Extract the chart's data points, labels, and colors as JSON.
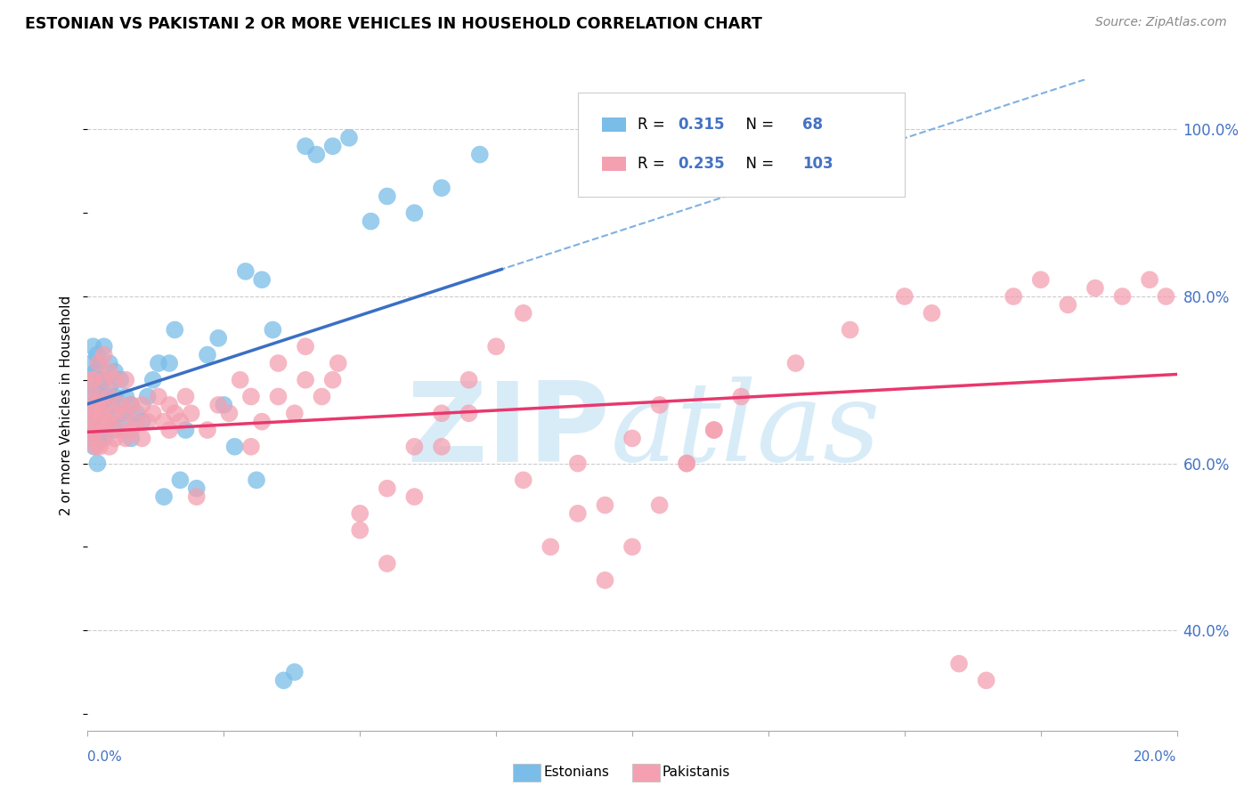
{
  "title": "ESTONIAN VS PAKISTANI 2 OR MORE VEHICLES IN HOUSEHOLD CORRELATION CHART",
  "source": "Source: ZipAtlas.com",
  "ylabel": "2 or more Vehicles in Household",
  "ytick_labels": [
    "100.0%",
    "80.0%",
    "60.0%",
    "40.0%"
  ],
  "ytick_positions": [
    1.0,
    0.8,
    0.6,
    0.4
  ],
  "xmin": 0.0,
  "xmax": 0.2,
  "ymin": 0.28,
  "ymax": 1.06,
  "r_estonian": 0.315,
  "n_estonian": 68,
  "r_pakistani": 0.235,
  "n_pakistani": 103,
  "color_estonian": "#7abde8",
  "color_pakistani": "#f4a0b0",
  "color_regression_estonian": "#3a6fc4",
  "color_regression_pakistani": "#e8386d",
  "color_dashed": "#80b0e0",
  "watermark_zip": "ZIP",
  "watermark_atlas": "atlas",
  "watermark_color": "#d8ecf8",
  "legend_label_estonian": "Estonians",
  "legend_label_pakistani": "Pakistanis",
  "estonian_x": [
    0.0005,
    0.0006,
    0.0007,
    0.0008,
    0.0009,
    0.001,
    0.001,
    0.0012,
    0.0013,
    0.0014,
    0.0015,
    0.0016,
    0.0017,
    0.0018,
    0.002,
    0.002,
    0.002,
    0.0022,
    0.0025,
    0.0025,
    0.003,
    0.003,
    0.003,
    0.003,
    0.0035,
    0.004,
    0.004,
    0.004,
    0.0045,
    0.005,
    0.005,
    0.005,
    0.006,
    0.006,
    0.007,
    0.007,
    0.008,
    0.008,
    0.009,
    0.01,
    0.011,
    0.012,
    0.013,
    0.014,
    0.015,
    0.016,
    0.017,
    0.018,
    0.02,
    0.022,
    0.024,
    0.025,
    0.027,
    0.029,
    0.031,
    0.032,
    0.034,
    0.036,
    0.038,
    0.04,
    0.042,
    0.045,
    0.048,
    0.052,
    0.055,
    0.06,
    0.065,
    0.072
  ],
  "estonian_y": [
    0.68,
    0.72,
    0.65,
    0.7,
    0.63,
    0.67,
    0.74,
    0.62,
    0.69,
    0.66,
    0.71,
    0.64,
    0.73,
    0.6,
    0.68,
    0.65,
    0.72,
    0.63,
    0.7,
    0.67,
    0.66,
    0.7,
    0.74,
    0.63,
    0.68,
    0.65,
    0.69,
    0.72,
    0.67,
    0.64,
    0.68,
    0.71,
    0.66,
    0.7,
    0.65,
    0.68,
    0.63,
    0.67,
    0.66,
    0.65,
    0.68,
    0.7,
    0.72,
    0.56,
    0.72,
    0.76,
    0.58,
    0.64,
    0.57,
    0.73,
    0.75,
    0.67,
    0.62,
    0.83,
    0.58,
    0.82,
    0.76,
    0.34,
    0.35,
    0.98,
    0.97,
    0.98,
    0.99,
    0.89,
    0.92,
    0.9,
    0.93,
    0.97
  ],
  "pakistani_x": [
    0.0005,
    0.0006,
    0.0007,
    0.0008,
    0.001,
    0.001,
    0.001,
    0.0012,
    0.0015,
    0.0018,
    0.002,
    0.002,
    0.002,
    0.0022,
    0.0025,
    0.003,
    0.003,
    0.003,
    0.003,
    0.0035,
    0.004,
    0.004,
    0.004,
    0.004,
    0.005,
    0.005,
    0.005,
    0.006,
    0.006,
    0.007,
    0.007,
    0.007,
    0.008,
    0.008,
    0.009,
    0.01,
    0.01,
    0.011,
    0.012,
    0.013,
    0.014,
    0.015,
    0.015,
    0.016,
    0.017,
    0.018,
    0.019,
    0.02,
    0.022,
    0.024,
    0.026,
    0.028,
    0.03,
    0.032,
    0.035,
    0.038,
    0.04,
    0.043,
    0.046,
    0.05,
    0.055,
    0.06,
    0.065,
    0.07,
    0.08,
    0.09,
    0.095,
    0.1,
    0.105,
    0.11,
    0.115,
    0.12,
    0.13,
    0.14,
    0.15,
    0.155,
    0.16,
    0.165,
    0.17,
    0.175,
    0.18,
    0.185,
    0.19,
    0.195,
    0.198,
    0.03,
    0.035,
    0.04,
    0.045,
    0.05,
    0.055,
    0.06,
    0.065,
    0.07,
    0.075,
    0.08,
    0.085,
    0.09,
    0.095,
    0.1,
    0.105,
    0.11,
    0.115
  ],
  "pakistani_y": [
    0.64,
    0.68,
    0.66,
    0.7,
    0.63,
    0.66,
    0.7,
    0.64,
    0.62,
    0.67,
    0.65,
    0.68,
    0.72,
    0.62,
    0.66,
    0.64,
    0.67,
    0.7,
    0.73,
    0.65,
    0.62,
    0.65,
    0.68,
    0.71,
    0.63,
    0.66,
    0.7,
    0.64,
    0.67,
    0.63,
    0.66,
    0.7,
    0.64,
    0.67,
    0.65,
    0.63,
    0.67,
    0.65,
    0.66,
    0.68,
    0.65,
    0.64,
    0.67,
    0.66,
    0.65,
    0.68,
    0.66,
    0.56,
    0.64,
    0.67,
    0.66,
    0.7,
    0.62,
    0.65,
    0.68,
    0.66,
    0.7,
    0.68,
    0.72,
    0.52,
    0.48,
    0.56,
    0.62,
    0.66,
    0.58,
    0.6,
    0.55,
    0.63,
    0.67,
    0.6,
    0.64,
    0.68,
    0.72,
    0.76,
    0.8,
    0.78,
    0.36,
    0.34,
    0.8,
    0.82,
    0.79,
    0.81,
    0.8,
    0.82,
    0.8,
    0.68,
    0.72,
    0.74,
    0.7,
    0.54,
    0.57,
    0.62,
    0.66,
    0.7,
    0.74,
    0.78,
    0.5,
    0.54,
    0.46,
    0.5,
    0.55,
    0.6,
    0.64
  ]
}
